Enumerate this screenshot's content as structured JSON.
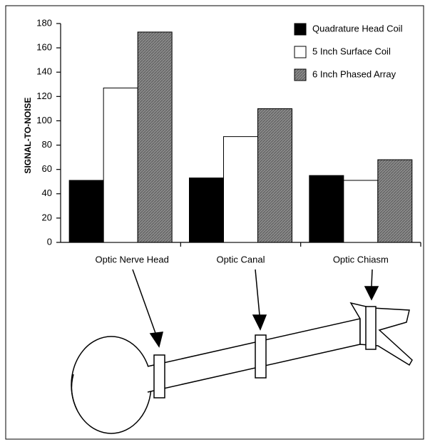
{
  "chart_data": {
    "type": "bar",
    "y_label": "SIGNAL-TO-NOISE",
    "categories": [
      "Optic Nerve Head",
      "Optic Canal",
      "Optic Chiasm"
    ],
    "series": [
      {
        "name": "Quadrature Head Coil",
        "color": "#000000",
        "values": [
          51,
          53,
          55
        ]
      },
      {
        "name": "5 Inch Surface Coil",
        "color": "#ffffff",
        "values": [
          127,
          87,
          51
        ]
      },
      {
        "name": "6 Inch Phased Array",
        "color": "#8a8a8a",
        "values": [
          173,
          110,
          68
        ]
      }
    ],
    "ylim": [
      0,
      180
    ],
    "yticks": [
      0,
      20,
      40,
      60,
      80,
      100,
      120,
      140,
      160,
      180
    ],
    "grid": false,
    "legend": "top-right"
  }
}
